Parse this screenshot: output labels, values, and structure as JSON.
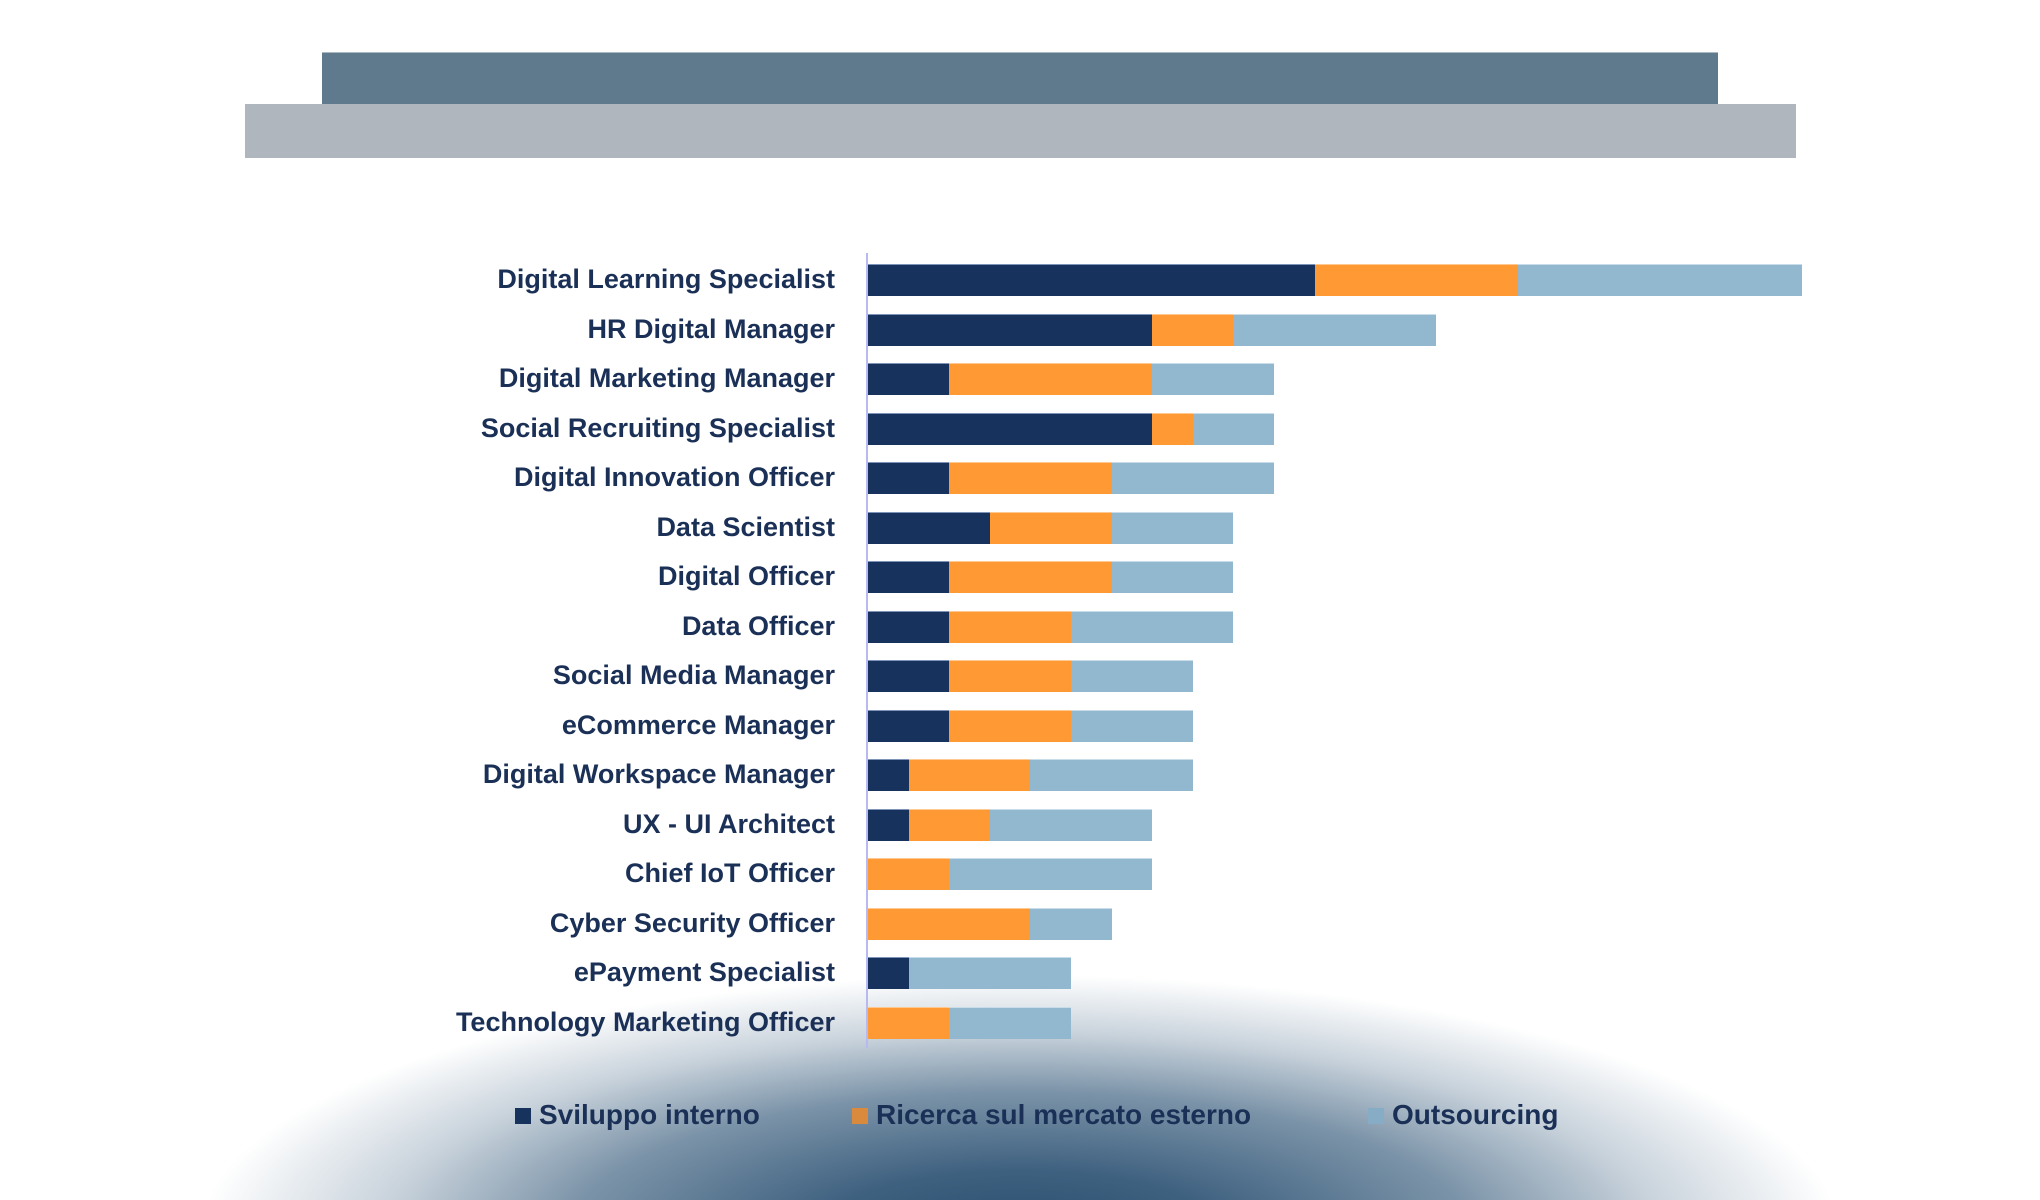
{
  "header": {
    "top_bar_color": "#5e7a8c",
    "bottom_bar_color": "#b0b6bd"
  },
  "colors": {
    "internal": "#17325c",
    "external": "#ff9933",
    "outsourcing": "#92b8cf",
    "label_text": "#1b3056",
    "axis": "#b9b9f2"
  },
  "legend": {
    "items": [
      {
        "label": "Sviluppo interno",
        "color": "#17325c"
      },
      {
        "label": "Ricerca sul mercato esterno",
        "color": "#d98a3c"
      },
      {
        "label": "Outsourcing",
        "color": "#86acc6"
      }
    ]
  },
  "chart_data": {
    "type": "bar",
    "orientation": "horizontal",
    "stacked": true,
    "title": "",
    "xlabel": "",
    "ylabel": "",
    "grid": false,
    "legend_position": "bottom",
    "categories": [
      "Digital Learning Specialist",
      "HR Digital Manager",
      "Digital Marketing Manager",
      "Social Recruiting Specialist",
      "Digital Innovation Officer",
      "Data Scientist",
      "Digital Officer",
      "Data Officer",
      "Social Media Manager",
      "eCommerce Manager",
      "Digital Workspace Manager",
      "UX - UI Architect",
      "Chief IoT Officer",
      "Cyber Security Officer",
      "ePayment Specialist",
      "Technology Marketing Officer"
    ],
    "series": [
      {
        "name": "Sviluppo interno",
        "color": "#17325c",
        "values": [
          11,
          7,
          2,
          7,
          2,
          3,
          2,
          2,
          2,
          2,
          1,
          1,
          0,
          0,
          1,
          0
        ]
      },
      {
        "name": "Ricerca sul mercato esterno",
        "color": "#ff9933",
        "values": [
          5,
          2,
          5,
          1,
          4,
          3,
          4,
          3,
          3,
          3,
          3,
          2,
          2,
          4,
          0,
          2
        ]
      },
      {
        "name": "Outsourcing",
        "color": "#92b8cf",
        "values": [
          7,
          5,
          3,
          2,
          4,
          3,
          3,
          4,
          3,
          3,
          4,
          4,
          5,
          2,
          4,
          3
        ]
      }
    ],
    "totals": [
      23,
      14,
      10,
      10,
      10,
      9,
      9,
      9,
      8,
      8,
      8,
      7,
      7,
      6,
      5,
      5
    ]
  }
}
